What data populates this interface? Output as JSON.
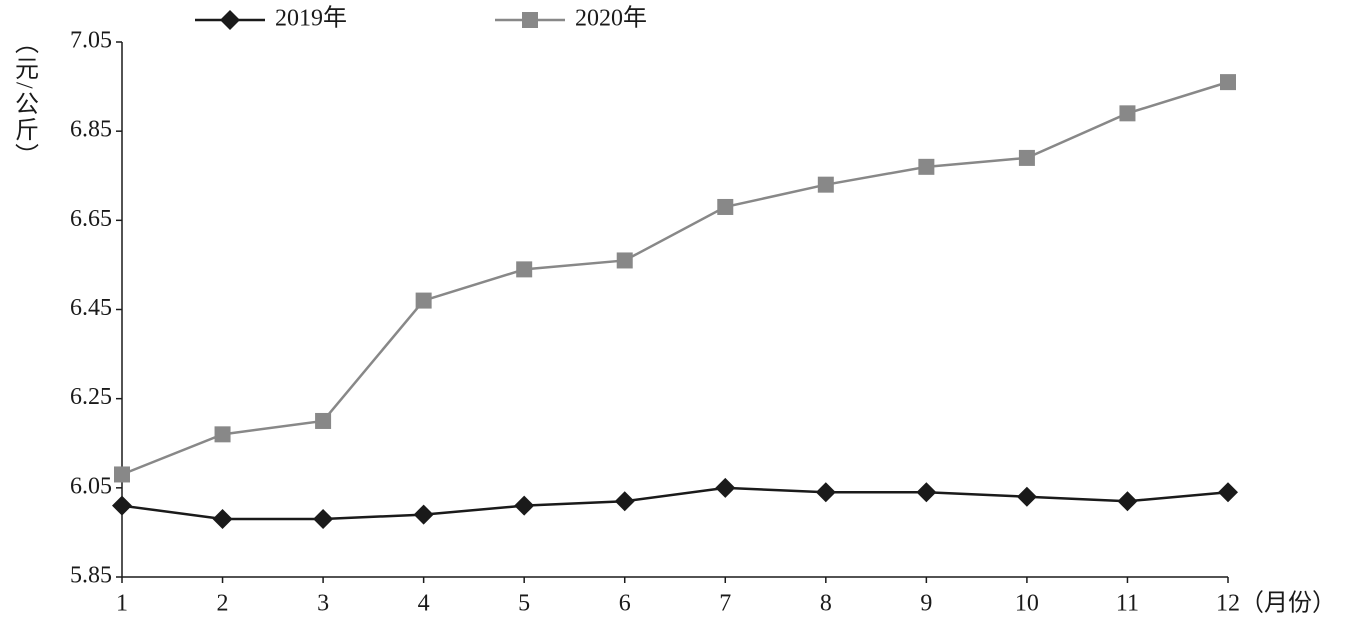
{
  "chart_data": {
    "type": "line",
    "y_label": "（元/公斤）",
    "x_label": "（月份）",
    "x": [
      1,
      2,
      3,
      4,
      5,
      6,
      7,
      8,
      9,
      10,
      11,
      12
    ],
    "series": [
      {
        "name": "2019年",
        "color": "#1a1a1a",
        "marker": "diamond",
        "values": [
          6.01,
          5.98,
          5.98,
          5.99,
          6.01,
          6.02,
          6.05,
          6.04,
          6.04,
          6.03,
          6.02,
          6.04
        ]
      },
      {
        "name": "2020年",
        "color": "#888888",
        "marker": "square",
        "values": [
          6.08,
          6.17,
          6.2,
          6.47,
          6.54,
          6.56,
          6.68,
          6.73,
          6.77,
          6.79,
          6.89,
          6.96
        ]
      }
    ],
    "xlim": [
      1,
      12
    ],
    "xticks": [
      1,
      2,
      3,
      4,
      5,
      6,
      7,
      8,
      9,
      10,
      11,
      12
    ],
    "ylim": [
      5.85,
      7.05
    ],
    "yticks": [
      5.85,
      6.05,
      6.25,
      6.45,
      6.65,
      6.85,
      7.05
    ],
    "grid": false
  }
}
